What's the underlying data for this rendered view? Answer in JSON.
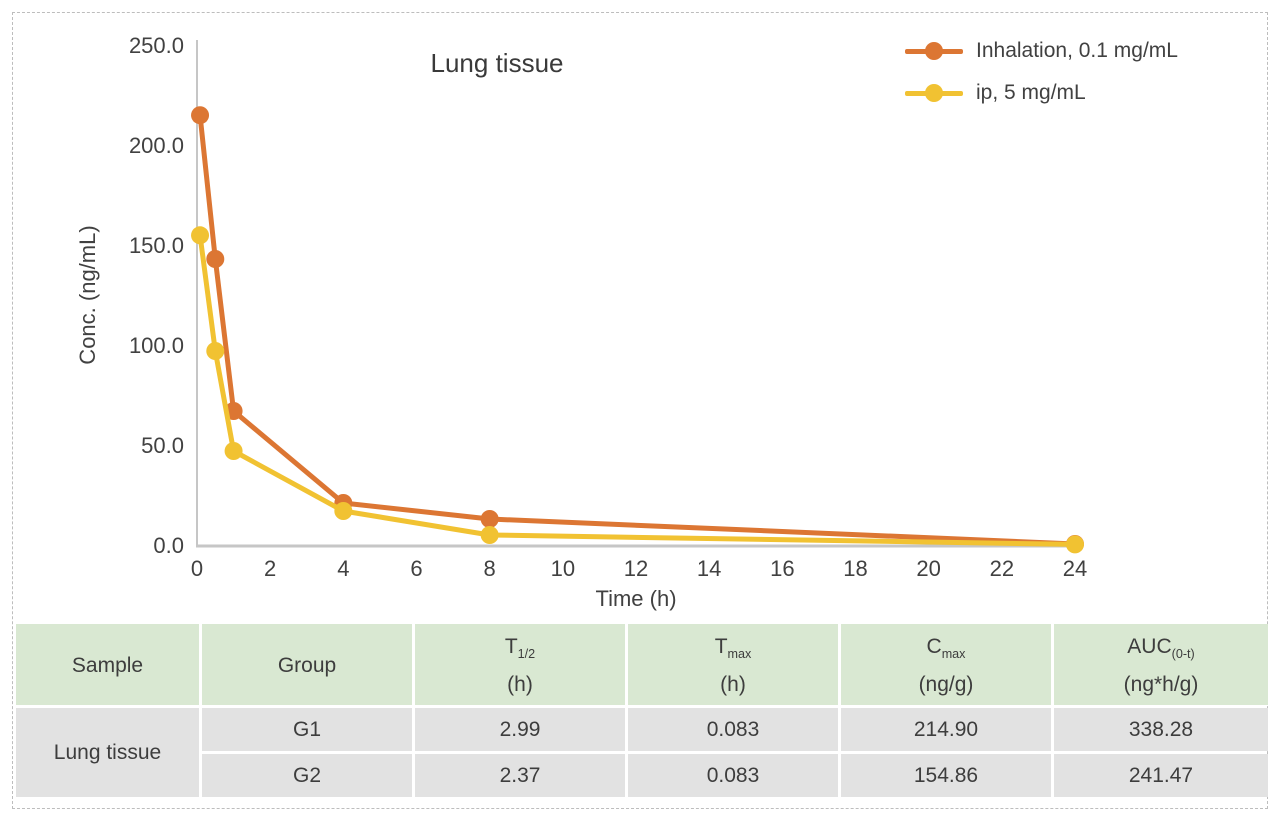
{
  "figure": {
    "frame_border_color": "#bdbdbd",
    "background": "#ffffff"
  },
  "chart_data": {
    "type": "line",
    "title": "Lung tissue",
    "xlabel": "Time (h)",
    "ylabel": "Conc. (ng/mL)",
    "x": [
      0.083,
      0.5,
      1,
      4,
      8,
      24
    ],
    "series": [
      {
        "name": "Inhalation, 0.1 mg/mL",
        "color": "#DC7633",
        "values": [
          214.9,
          143,
          67,
          21,
          13,
          0.5
        ]
      },
      {
        "name": "ip, 5 mg/mL",
        "color": "#F1C232",
        "values": [
          154.86,
          97,
          47,
          17,
          5,
          0.3
        ]
      }
    ],
    "xlim": [
      0,
      24
    ],
    "ylim": [
      0,
      250
    ],
    "xtick_labels": [
      "0",
      "2",
      "4",
      "6",
      "8",
      "10",
      "12",
      "14",
      "16",
      "18",
      "20",
      "22",
      "24"
    ],
    "ytick_labels": [
      "0.0",
      "50.0",
      "100.0",
      "150.0",
      "200.0",
      "250.0"
    ],
    "grid": false,
    "legend_position": "top-right",
    "axis_color": "#c6c6c6",
    "tick_label_color": "#414141"
  },
  "table": {
    "header_bg": "#d9e8d2",
    "row_bg": "#e2e2e2",
    "columns": [
      {
        "main": "Sample",
        "sub": "",
        "unit": ""
      },
      {
        "main": "Group",
        "sub": "",
        "unit": ""
      },
      {
        "main": "T",
        "sub": "1/2",
        "unit": "(h)"
      },
      {
        "main": "T",
        "sub": "max",
        "unit": "(h)"
      },
      {
        "main": "C",
        "sub": "max",
        "unit": "(ng/g)"
      },
      {
        "main": "AUC",
        "sub": "(0-t)",
        "unit": "(ng*h/g)"
      }
    ],
    "sample_label": "Lung tissue",
    "rows": [
      {
        "group": "G1",
        "t_half": "2.99",
        "t_max": "0.083",
        "c_max": "214.90",
        "auc": "338.28"
      },
      {
        "group": "G2",
        "t_half": "2.37",
        "t_max": "0.083",
        "c_max": "154.86",
        "auc": "241.47"
      }
    ]
  }
}
